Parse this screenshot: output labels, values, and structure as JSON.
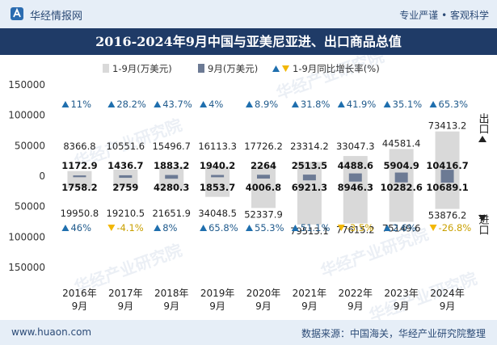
{
  "header": {
    "logo_text": "华经情报网",
    "slogan": "专业严谨 • 客观科学",
    "watermark": "华经产业研究院"
  },
  "title": "2016-2024年9月中国与亚美尼亚进、出口商品总值",
  "footer": {
    "website": "www.huaon.com",
    "source": "数据来源：中国海关，华经产业研究院整理"
  },
  "colors": {
    "cumulative_bar": "#d9d9d9",
    "monthly_bar": "#6c7a94",
    "up_arrow": "#1f6fae",
    "down_arrow": "#f2b705",
    "header_bg": "#e6eef7",
    "title_bg": "#1f3b67"
  },
  "chart_data": {
    "type": "bar",
    "title": "2016-2024年9月中国与亚美尼亚进、出口商品总值",
    "legend": {
      "cumulative": "1-9月(万美元)",
      "monthly": "9月(万美元)",
      "growth": "1-9月同比增长率(%)"
    },
    "side_labels": {
      "export": "出口",
      "import": "进口"
    },
    "yaxis": {
      "ylim": [
        -150000,
        150000
      ],
      "ticks": [
        150000,
        100000,
        50000,
        0,
        -50000,
        -100000,
        -150000
      ],
      "tick_labels": [
        "150000",
        "100000",
        "50000",
        "0",
        "50000",
        "100000",
        "150000"
      ]
    },
    "categories": [
      "2016年\n9月",
      "2017年\n9月",
      "2018年\n9月",
      "2019年\n9月",
      "2020年\n9月",
      "2021年\n9月",
      "2022年\n9月",
      "2023年\n9月",
      "2024年\n9月"
    ],
    "export_cumulative": [
      8366.8,
      10551.6,
      15496.7,
      16113.3,
      17726.2,
      23314.2,
      33047.3,
      44581.4,
      73413.2
    ],
    "export_monthly": [
      1172.9,
      1436.7,
      1883.2,
      1940.2,
      2264,
      2513.5,
      4488.6,
      5904.9,
      10416.7
    ],
    "import_cumulative": [
      19950.8,
      19210.5,
      21651.9,
      34048.5,
      52337.9,
      79513.1,
      77615.2,
      75149.6,
      53876.2
    ],
    "import_monthly": [
      1758.2,
      2759,
      4280.3,
      1853.7,
      4006.8,
      6921.3,
      8946.3,
      10282.6,
      10689.1
    ],
    "export_growth": [
      "11%",
      "28.2%",
      "43.7%",
      "4%",
      "8.9%",
      "31.8%",
      "41.9%",
      "35.1%",
      "65.3%"
    ],
    "export_growth_dir": [
      "up",
      "up",
      "up",
      "up",
      "up",
      "up",
      "up",
      "up",
      "up"
    ],
    "import_growth": [
      "46%",
      "-4.1%",
      "8%",
      "65.8%",
      "55.3%",
      "51.1%",
      "-3.5%",
      "2.6%",
      "-26.8%"
    ],
    "import_growth_dir": [
      "up",
      "down",
      "up",
      "up",
      "up",
      "up",
      "down",
      "up",
      "down"
    ]
  }
}
